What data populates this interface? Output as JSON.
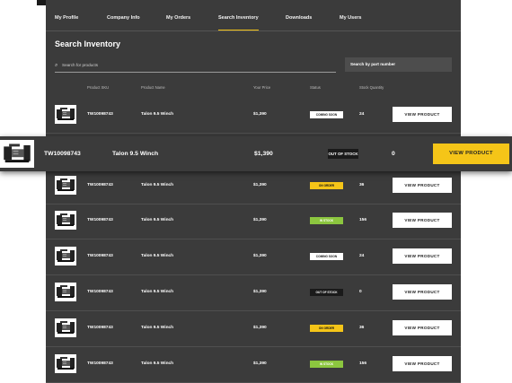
{
  "tabs": [
    "My Profile",
    "Company Info",
    "My Orders",
    "Search Inventory",
    "Downloads",
    "My Users"
  ],
  "title": "Search Inventory",
  "search": {
    "placeholder": "Search for products"
  },
  "search_part_button": "Search by part number",
  "columns": [
    "Product SKU",
    "Product Name",
    "Your Price",
    "Status",
    "Stock Quantity"
  ],
  "action_label": "VIEW PRODUCT",
  "rows": [
    {
      "sku": "TW10098743",
      "name": "Talon 9.5 Winch",
      "price": "$1,390",
      "status": "COMING SOON",
      "qty": "24"
    },
    {
      "sku": "TW10098743",
      "name": "Talon 9.5 Winch",
      "price": "$1,390",
      "status": "ON ORDER",
      "qty": "36"
    },
    {
      "sku": "TW10098743",
      "name": "Talon 9.5 Winch",
      "price": "$1,390",
      "status": "IN STOCK",
      "qty": "156"
    },
    {
      "sku": "TW10098743",
      "name": "Talon 9.5 Winch",
      "price": "$1,390",
      "status": "COMING SOON",
      "qty": "24"
    },
    {
      "sku": "TW10098743",
      "name": "Talon 9.5 Winch",
      "price": "$1,390",
      "status": "OUT OF STOCK",
      "qty": "0"
    },
    {
      "sku": "TW10098743",
      "name": "Talon 9.5 Winch",
      "price": "$1,390",
      "status": "ON ORDER",
      "qty": "36"
    },
    {
      "sku": "TW10098743",
      "name": "Talon 9.5 Winch",
      "price": "$1,390",
      "status": "IN STOCK",
      "qty": "156"
    }
  ],
  "highlight": {
    "sku": "TW10098743",
    "name": "Talon 9.5 Winch",
    "price": "$1,390",
    "status": "OUT OF STOCK",
    "qty": "0"
  },
  "status_colors": {
    "COMING SOON": "#ffffff",
    "ON ORDER": "#f5c518",
    "IN STOCK": "#8cc63f",
    "OUT OF STOCK": "#1a1a1a"
  },
  "accent": "#f5c518",
  "icons": {
    "search": "search-icon",
    "product": "winch-thumbnail"
  }
}
